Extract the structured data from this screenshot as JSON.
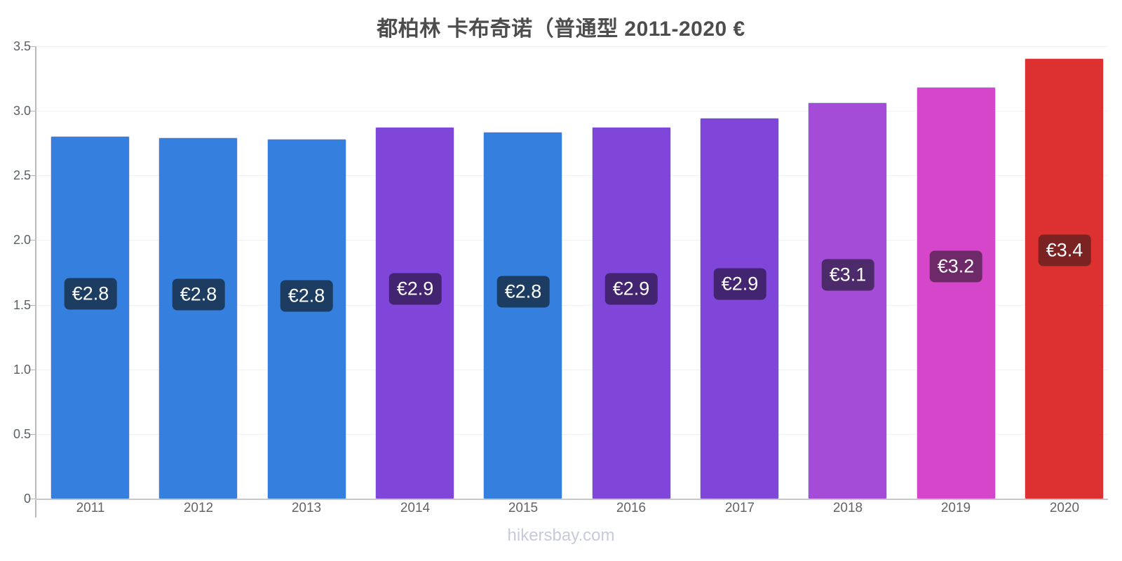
{
  "page": {
    "title": "都柏林 卡布奇诺（普通型 2011-2020 €",
    "footer": "hikersbay.com"
  },
  "chart_data": {
    "type": "bar",
    "title": "都柏林 卡布奇诺（普通型 2011-2020 €",
    "currency": "€",
    "categories": [
      "2011",
      "2012",
      "2013",
      "2014",
      "2015",
      "2016",
      "2017",
      "2018",
      "2019",
      "2020"
    ],
    "values": [
      2.8,
      2.79,
      2.78,
      2.87,
      2.83,
      2.87,
      2.94,
      3.06,
      3.18,
      3.4
    ],
    "bar_labels": [
      "€2.8",
      "€2.8",
      "€2.8",
      "€2.9",
      "€2.8",
      "€2.9",
      "€2.9",
      "€3.1",
      "€3.2",
      "€3.4"
    ],
    "bar_colors": [
      "#3580de",
      "#3580de",
      "#3580de",
      "#8045d9",
      "#3580de",
      "#8045d9",
      "#8045d9",
      "#a44cd7",
      "#d646cb",
      "#dd3131"
    ],
    "label_bg_colors": [
      "#1d3c61",
      "#1d3c61",
      "#1d3c61",
      "#422470",
      "#1d3c61",
      "#422470",
      "#422470",
      "#4d2a69",
      "#6e2a68",
      "#7b2323"
    ],
    "xlabel": "",
    "ylabel": "",
    "ylim": [
      0,
      3.5
    ],
    "ytick_labels": [
      "3.5",
      "3.0",
      "2.5",
      "2.0",
      "1.5",
      "1.0",
      "0.5",
      "0"
    ],
    "ytick_values": [
      3.5,
      3.0,
      2.5,
      2.0,
      1.5,
      1.0,
      0.5,
      0
    ],
    "grid": "horizontal-light",
    "legend": "none"
  }
}
